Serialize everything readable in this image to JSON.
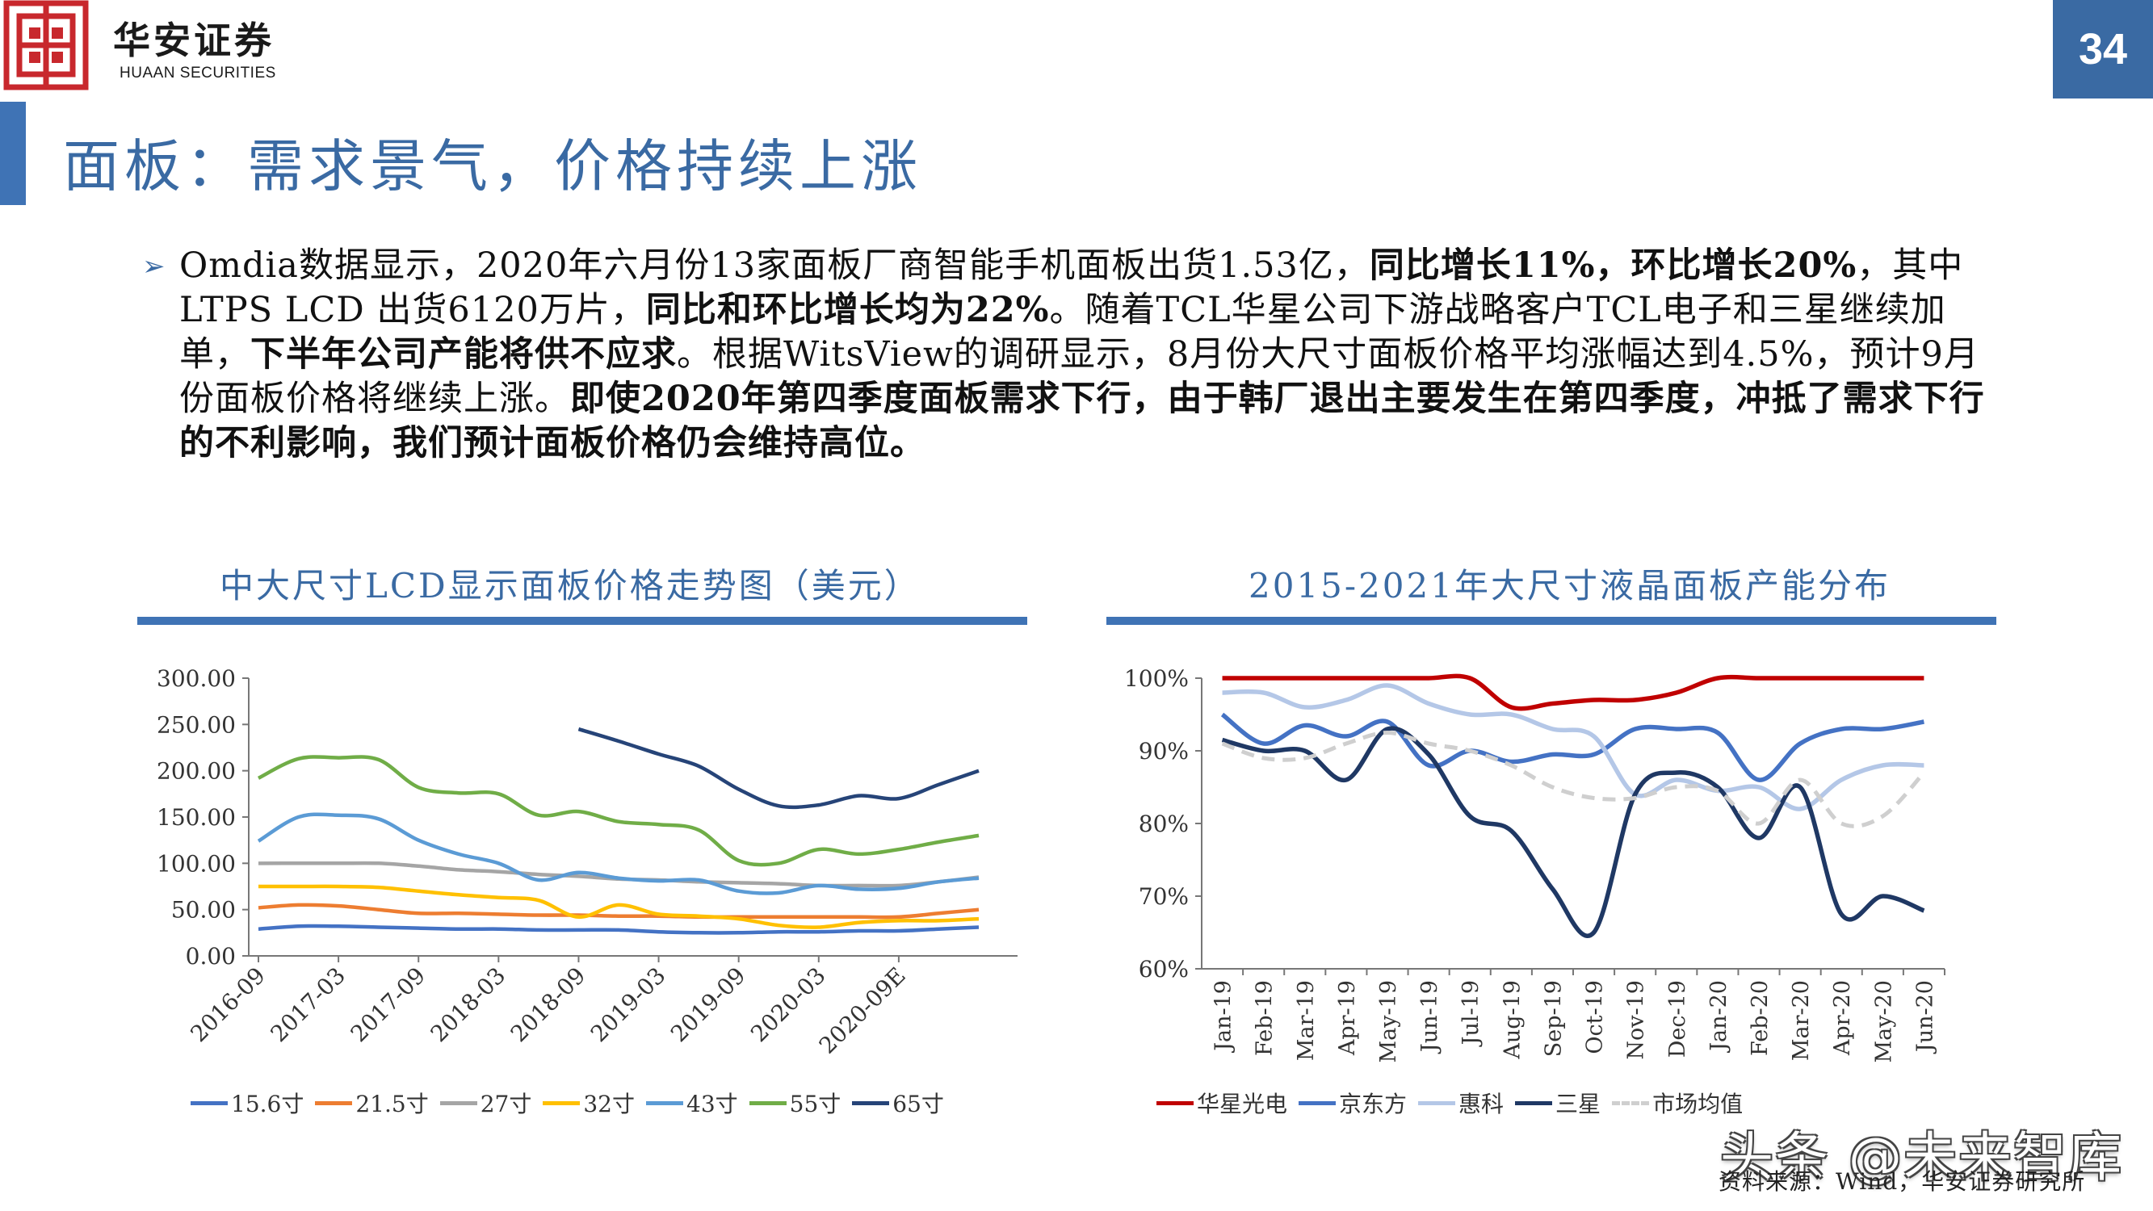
{
  "header": {
    "brand_cn": "华安证券",
    "brand_en": "HUAAN SECURITIES",
    "page_number": "34",
    "title": "面板：需求景气，价格持续上涨"
  },
  "colors": {
    "accent": "#3a6aa3",
    "logo_red": "#c8282d"
  },
  "body": {
    "bullet_icon": "triangle-arrow-icon",
    "segments": [
      {
        "text": "Omdia数据显示，2020年六月份13家面板厂商智能手机面板出货1.53亿，",
        "bold": false
      },
      {
        "text": "同比增长11%，环比增长20%",
        "bold": true
      },
      {
        "text": "，其中LTPS LCD 出货6120万片，",
        "bold": false
      },
      {
        "text": "同比和环比增长均为22%",
        "bold": true
      },
      {
        "text": "。随着TCL华星公司下游战略客户TCL电子和三星继续加单，",
        "bold": false
      },
      {
        "text": "下半年公司产能将供不应求",
        "bold": true
      },
      {
        "text": "。根据WitsView的调研显示，8月份大尺寸面板价格平均涨幅达到4.5%，预计9月份面板价格将继续上涨。",
        "bold": false
      },
      {
        "text": "即使2020年第四季度面板需求下行，由于韩厂退出主要发生在第四季度，冲抵了需求下行的不利影响，我们预计面板价格仍会维持高位。",
        "bold": true
      }
    ]
  },
  "footer": {
    "watermark": "头条 @未来智库",
    "source": "资料来源：Wind，华安证券研究所"
  },
  "chart_data": [
    {
      "type": "line",
      "title": "中大尺寸LCD显示面板价格走势图（美元）",
      "ylim": [
        0,
        300
      ],
      "yticks": [
        "300.00",
        "250.00",
        "200.00",
        "150.00",
        "100.00",
        "50.00",
        "0.00"
      ],
      "x_tick_labels": [
        "2016-09",
        "2017-03",
        "2017-09",
        "2018-03",
        "2018-09",
        "2019-03",
        "2019-09",
        "2020-03",
        "2020-09E"
      ],
      "n_points": 19,
      "grid": false,
      "legend_position": "bottom",
      "series": [
        {
          "name": "15.6寸",
          "color": "#4472c4",
          "values": [
            29,
            32,
            32,
            31,
            30,
            29,
            29,
            28,
            28,
            28,
            26,
            25,
            25,
            26,
            26,
            27,
            27,
            29,
            31
          ]
        },
        {
          "name": "21.5寸",
          "color": "#ed7d31",
          "values": [
            52,
            55,
            54,
            50,
            46,
            46,
            45,
            44,
            44,
            43,
            43,
            42,
            42,
            42,
            42,
            42,
            42,
            46,
            50
          ]
        },
        {
          "name": "27寸",
          "color": "#a5a5a5",
          "values": [
            100,
            100,
            100,
            100,
            97,
            93,
            91,
            88,
            86,
            83,
            82,
            80,
            79,
            78,
            76,
            76,
            76,
            80,
            85
          ]
        },
        {
          "name": "32寸",
          "color": "#ffc000",
          "values": [
            75,
            75,
            75,
            74,
            70,
            66,
            63,
            60,
            42,
            55,
            45,
            43,
            40,
            33,
            31,
            36,
            38,
            38,
            40
          ]
        },
        {
          "name": "43寸",
          "color": "#5b9bd5",
          "values": [
            124,
            150,
            152,
            148,
            125,
            110,
            100,
            82,
            90,
            84,
            81,
            82,
            70,
            68,
            76,
            72,
            73,
            80,
            84
          ]
        },
        {
          "name": "55寸",
          "color": "#70ad47",
          "values": [
            192,
            213,
            214,
            212,
            182,
            176,
            175,
            152,
            156,
            145,
            142,
            136,
            103,
            100,
            115,
            110,
            115,
            123,
            130
          ]
        },
        {
          "name": "65寸",
          "color": "#264478",
          "values": [
            null,
            null,
            null,
            null,
            null,
            null,
            null,
            null,
            245,
            232,
            218,
            205,
            180,
            162,
            163,
            173,
            170,
            185,
            200
          ]
        }
      ]
    },
    {
      "type": "line",
      "title": "2015-2021年大尺寸液晶面板产能分布",
      "ylim": [
        60,
        100
      ],
      "yticks": [
        "100%",
        "90%",
        "80%",
        "70%",
        "60%"
      ],
      "categories": [
        "Jan-19",
        "Feb-19",
        "Mar-19",
        "Apr-19",
        "May-19",
        "Jun-19",
        "Jul-19",
        "Aug-19",
        "Sep-19",
        "Oct-19",
        "Nov-19",
        "Dec-19",
        "Jan-20",
        "Feb-20",
        "Mar-20",
        "Apr-20",
        "May-20",
        "Jun-20"
      ],
      "grid": false,
      "legend_position": "bottom",
      "series": [
        {
          "name": "华星光电",
          "color": "#c00000",
          "dashed": false,
          "values": [
            100,
            100,
            100,
            100,
            100,
            100,
            100,
            96,
            96.5,
            97,
            97,
            98,
            100,
            100,
            100,
            100,
            100,
            100
          ]
        },
        {
          "name": "京东方",
          "color": "#4472c4",
          "dashed": false,
          "values": [
            95,
            91,
            93.5,
            92,
            94,
            88,
            90,
            88.5,
            89.5,
            89.5,
            93,
            93,
            92.5,
            86,
            91,
            93,
            93,
            94
          ]
        },
        {
          "name": "惠科",
          "color": "#b4c7e7",
          "dashed": false,
          "values": [
            98,
            98,
            96,
            97,
            99,
            96.5,
            95,
            95,
            93,
            92,
            84,
            86,
            84.5,
            85,
            82,
            86,
            88,
            88
          ]
        },
        {
          "name": "三星",
          "color": "#1f3864",
          "dashed": false,
          "values": [
            91.5,
            90,
            90,
            86,
            93,
            89.5,
            81,
            79,
            71,
            65,
            84,
            87,
            85,
            78,
            85,
            67.5,
            70,
            68
          ]
        },
        {
          "name": "市场均值",
          "color": "#cfcfcf",
          "dashed": true,
          "values": [
            91,
            89,
            89,
            91,
            92.5,
            91,
            90,
            88,
            85,
            83.5,
            83.5,
            85,
            84.5,
            80,
            86,
            80,
            81,
            87
          ]
        }
      ]
    }
  ]
}
